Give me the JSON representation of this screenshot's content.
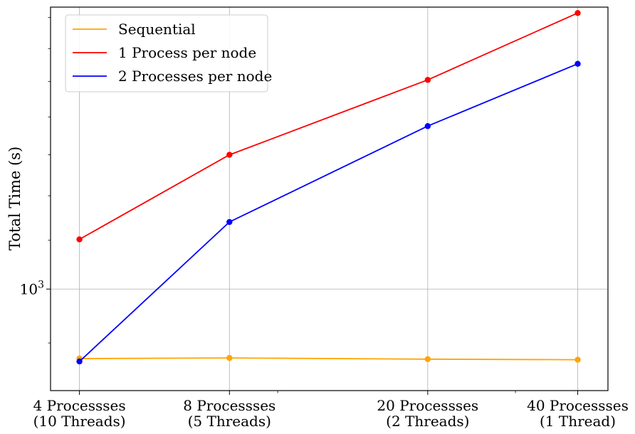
{
  "chart_data": {
    "type": "line",
    "x": [
      4,
      8,
      20,
      40
    ],
    "xscale": "log",
    "yscale": "log",
    "categories": [
      [
        "4 Processses",
        "(10 Threads)"
      ],
      [
        "8 Processses",
        "(5 Threads)"
      ],
      [
        "20 Processses",
        "(2 Threads)"
      ],
      [
        "40 Processses",
        "(1 Thread)"
      ]
    ],
    "ylabel": "Total Time (s)",
    "y_major_ticks": [
      1000
    ],
    "y_major_tick_labels": [
      "10^3"
    ],
    "ylim": [
      820,
      1735
    ],
    "grid": true,
    "legend_position": "top-left",
    "series": [
      {
        "name": "Sequential",
        "color": "#FFA500",
        "values": [
          873,
          874,
          872,
          871
        ]
      },
      {
        "name": "1 Process per node",
        "color": "#FF0000",
        "values": [
          1102,
          1300,
          1505,
          1715
        ]
      },
      {
        "name": "2 Processes per node",
        "color": "#0000FF",
        "values": [
          868,
          1140,
          1375,
          1553
        ]
      }
    ]
  }
}
